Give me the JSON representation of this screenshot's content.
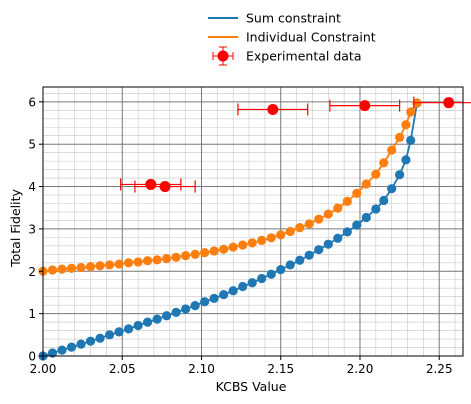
{
  "chart_data": {
    "type": "scatter",
    "xlabel": "KCBS Value",
    "ylabel": "Total Fidelity",
    "xlim": [
      2.0,
      2.265
    ],
    "ylim": [
      0,
      6.35
    ],
    "xticks": [
      2.0,
      2.05,
      2.1,
      2.15,
      2.2,
      2.25
    ],
    "xtick_labels": [
      "2.00",
      "2.05",
      "2.10",
      "2.15",
      "2.20",
      "2.25"
    ],
    "yticks": [
      0,
      1,
      2,
      3,
      4,
      5,
      6
    ],
    "ytick_labels": [
      "0",
      "1",
      "2",
      "3",
      "4",
      "5",
      "6"
    ],
    "grid": true,
    "minor_grid": true,
    "legend_position": "top-center",
    "series": [
      {
        "name": "Sum constraint",
        "color": "#1f77b4",
        "x": [
          2.0,
          2.006,
          2.012,
          2.018,
          2.024,
          2.03,
          2.036,
          2.042,
          2.048,
          2.054,
          2.06,
          2.066,
          2.072,
          2.078,
          2.084,
          2.09,
          2.096,
          2.102,
          2.108,
          2.114,
          2.12,
          2.126,
          2.132,
          2.138,
          2.144,
          2.15,
          2.156,
          2.162,
          2.168,
          2.174,
          2.18,
          2.186,
          2.192,
          2.198,
          2.204,
          2.21,
          2.215,
          2.22,
          2.225,
          2.229,
          2.232,
          2.236
        ],
        "y": [
          0.0,
          0.07,
          0.14,
          0.21,
          0.28,
          0.35,
          0.42,
          0.5,
          0.57,
          0.64,
          0.72,
          0.8,
          0.87,
          0.95,
          1.03,
          1.11,
          1.19,
          1.28,
          1.36,
          1.45,
          1.54,
          1.64,
          1.73,
          1.83,
          1.93,
          2.04,
          2.15,
          2.26,
          2.38,
          2.51,
          2.64,
          2.78,
          2.93,
          3.09,
          3.27,
          3.47,
          3.67,
          3.95,
          4.28,
          4.63,
          5.09,
          5.97
        ]
      },
      {
        "name": "Individual Constraint",
        "color": "#ff7f0e",
        "x": [
          2.0,
          2.006,
          2.012,
          2.018,
          2.024,
          2.03,
          2.036,
          2.042,
          2.048,
          2.054,
          2.06,
          2.066,
          2.072,
          2.078,
          2.084,
          2.09,
          2.096,
          2.102,
          2.108,
          2.114,
          2.12,
          2.126,
          2.132,
          2.138,
          2.144,
          2.15,
          2.156,
          2.162,
          2.168,
          2.174,
          2.18,
          2.186,
          2.192,
          2.198,
          2.204,
          2.21,
          2.215,
          2.22,
          2.225,
          2.229,
          2.232,
          2.236
        ],
        "y": [
          2.0,
          2.03,
          2.05,
          2.07,
          2.09,
          2.11,
          2.13,
          2.15,
          2.17,
          2.2,
          2.22,
          2.25,
          2.27,
          2.3,
          2.33,
          2.37,
          2.4,
          2.44,
          2.48,
          2.52,
          2.57,
          2.62,
          2.67,
          2.73,
          2.79,
          2.86,
          2.94,
          3.03,
          3.12,
          3.23,
          3.35,
          3.49,
          3.65,
          3.84,
          4.06,
          4.29,
          4.56,
          4.86,
          5.16,
          5.46,
          5.76,
          5.97
        ]
      }
    ],
    "experimental": {
      "name": "Experimental data",
      "color": "#ff0000",
      "points": [
        {
          "x": 2.068,
          "y": 4.05,
          "xerr": 0.019,
          "yerr": 0.06
        },
        {
          "x": 2.077,
          "y": 4.0,
          "xerr": 0.019,
          "yerr": 0.06
        },
        {
          "x": 2.145,
          "y": 5.82,
          "xerr": 0.022,
          "yerr": 0.07
        },
        {
          "x": 2.203,
          "y": 5.91,
          "xerr": 0.022,
          "yerr": 0.06
        },
        {
          "x": 2.256,
          "y": 5.98,
          "xerr": 0.022,
          "yerr": 0.05
        }
      ]
    }
  }
}
